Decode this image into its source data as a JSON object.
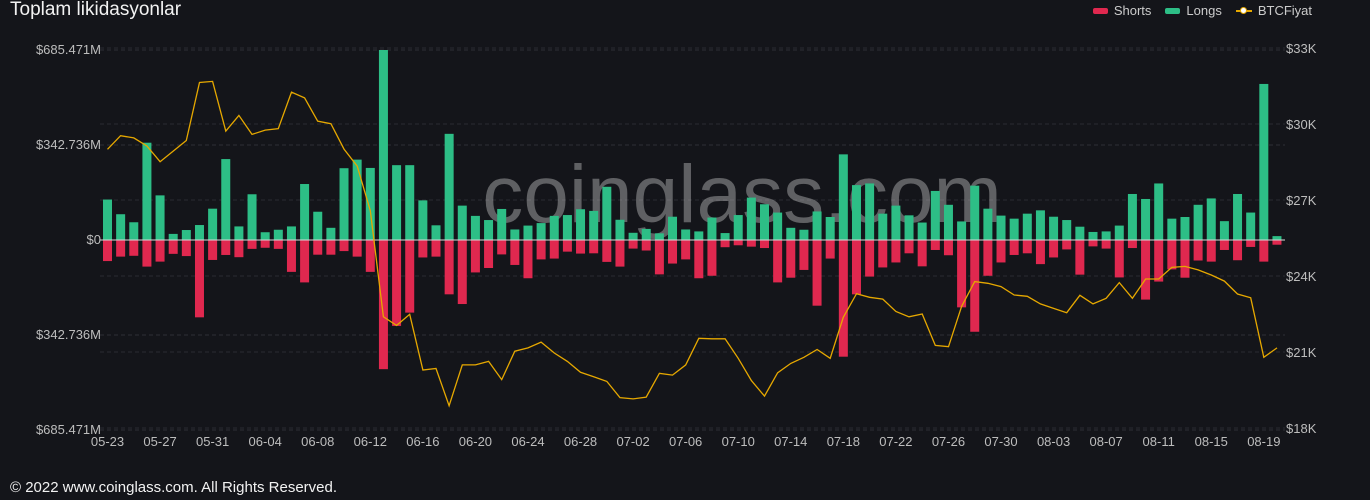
{
  "title": "Toplam likidasyonlar",
  "footer": "© 2022 www.coinglass.com. All Rights Reserved.",
  "watermark": "coinglass.com",
  "legend": [
    {
      "name": "Shorts",
      "color": "#e0284f"
    },
    {
      "name": "Longs",
      "color": "#2dbe86"
    },
    {
      "name": "BTCFiyat",
      "color": "#e6a800"
    }
  ],
  "chart_data": {
    "type": "bar",
    "left_axis": {
      "ticks": [
        "$685.471M",
        "$342.736M",
        "$0",
        "$342.736M",
        "$685.471M"
      ],
      "range": [
        -685.471,
        685.471
      ],
      "unit": "M USD"
    },
    "right_axis": {
      "ticks": [
        "$33K",
        "$30K",
        "$27K",
        "$24K",
        "$21K",
        "$18K"
      ],
      "range": [
        18000,
        33000
      ]
    },
    "x_tick_labels": [
      "05-23",
      "05-27",
      "05-31",
      "06-04",
      "06-08",
      "06-12",
      "06-16",
      "06-20",
      "06-24",
      "06-28",
      "07-02",
      "07-06",
      "07-10",
      "07-14",
      "07-18",
      "07-22",
      "07-26",
      "07-30",
      "08-03",
      "08-07",
      "08-11",
      "08-15",
      "08-19"
    ],
    "grid": true,
    "legend_position": "top-right",
    "dates": [
      "05-23",
      "05-24",
      "05-25",
      "05-26",
      "05-27",
      "05-28",
      "05-29",
      "05-30",
      "05-31",
      "06-01",
      "06-02",
      "06-03",
      "06-04",
      "06-05",
      "06-06",
      "06-07",
      "06-08",
      "06-09",
      "06-10",
      "06-11",
      "06-12",
      "06-13",
      "06-14",
      "06-15",
      "06-16",
      "06-17",
      "06-18",
      "06-19",
      "06-20",
      "06-21",
      "06-22",
      "06-23",
      "06-24",
      "06-25",
      "06-26",
      "06-27",
      "06-28",
      "06-29",
      "06-30",
      "07-01",
      "07-02",
      "07-03",
      "07-04",
      "07-05",
      "07-06",
      "07-07",
      "07-08",
      "07-09",
      "07-10",
      "07-11",
      "07-12",
      "07-13",
      "07-14",
      "07-15",
      "07-16",
      "07-17",
      "07-18",
      "07-19",
      "07-20",
      "07-21",
      "07-22",
      "07-23",
      "07-24",
      "07-25",
      "07-26",
      "07-27",
      "07-28",
      "07-29",
      "07-30",
      "07-31",
      "08-01",
      "08-02",
      "08-03",
      "08-04",
      "08-05",
      "08-06",
      "08-07",
      "08-08",
      "08-09",
      "08-10",
      "08-11",
      "08-12",
      "08-13",
      "08-14",
      "08-15",
      "08-16",
      "08-17",
      "08-18",
      "08-19",
      "08-20"
    ],
    "series": [
      {
        "name": "Longs",
        "unit": "M USD",
        "values": [
          146,
          93,
          64,
          351,
          161,
          22,
          36,
          54,
          113,
          292,
          49,
          165,
          28,
          37,
          49,
          202,
          102,
          44,
          259,
          290,
          260,
          685.471,
          270,
          270,
          143,
          53,
          383,
          124,
          87,
          72,
          112,
          38,
          52,
          61,
          87,
          90,
          111,
          105,
          192,
          73,
          26,
          40,
          24,
          84,
          38,
          31,
          81,
          25,
          90,
          153,
          129,
          99,
          44,
          37,
          103,
          83,
          309,
          198,
          204,
          95,
          124,
          89,
          63,
          177,
          127,
          67,
          196,
          113,
          88,
          77,
          95,
          107,
          84,
          72,
          48,
          29,
          31,
          52,
          166,
          148,
          204,
          77,
          83,
          127,
          150,
          68,
          166,
          99,
          563,
          14
        ]
      },
      {
        "name": "Shorts",
        "unit": "M USD",
        "values": [
          76,
          60,
          57,
          96,
          78,
          50,
          58,
          279,
          72,
          54,
          62,
          32,
          28,
          32,
          115,
          153,
          53,
          53,
          40,
          60,
          115,
          466,
          310,
          262,
          63,
          60,
          196,
          231,
          117,
          101,
          52,
          90,
          138,
          70,
          67,
          42,
          49,
          48,
          79,
          96,
          31,
          38,
          124,
          85,
          70,
          138,
          129,
          26,
          19,
          24,
          29,
          153,
          136,
          108,
          237,
          67,
          421,
          196,
          132,
          99,
          81,
          48,
          95,
          36,
          55,
          243,
          331,
          129,
          81,
          54,
          48,
          87,
          63,
          34,
          125,
          23,
          31,
          135,
          29,
          215,
          150,
          106,
          136,
          74,
          78,
          36,
          73,
          25,
          78,
          17
        ]
      },
      {
        "name": "BTCFiyat",
        "unit": "USD",
        "values": [
          29000,
          29540,
          29450,
          29130,
          28510,
          28930,
          29350,
          31640,
          31680,
          29720,
          30340,
          29590,
          29760,
          29820,
          31260,
          31030,
          30110,
          30010,
          29010,
          28340,
          26580,
          22390,
          22050,
          22490,
          20290,
          20350,
          18880,
          20490,
          20490,
          20630,
          19910,
          21030,
          21160,
          21390,
          20960,
          20630,
          20200,
          20020,
          19840,
          19200,
          19150,
          19220,
          20160,
          20090,
          20490,
          21540,
          21520,
          21520,
          20750,
          19870,
          19260,
          20180,
          20550,
          20790,
          21100,
          20750,
          22370,
          23300,
          23160,
          23090,
          22600,
          22390,
          22500,
          21260,
          21210,
          22800,
          23780,
          23710,
          23580,
          23250,
          23200,
          22900,
          22720,
          22550,
          23240,
          22900,
          23120,
          23740,
          23120,
          23880,
          23880,
          24340,
          24380,
          24240,
          24040,
          23800,
          23290,
          23140,
          20790,
          21160
        ]
      }
    ]
  }
}
